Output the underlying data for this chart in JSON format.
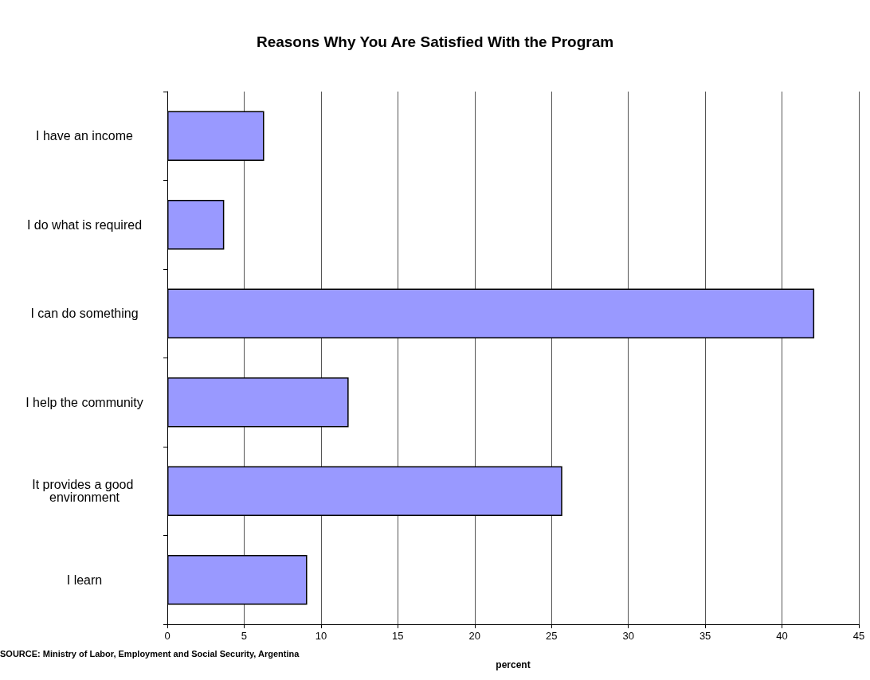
{
  "chart_data": {
    "type": "bar",
    "orientation": "horizontal",
    "title": "Reasons Why You Are Satisfied With the Program",
    "xlabel": "percent",
    "categories": [
      "I have an income",
      "I do what is required",
      "I can do something",
      "I help the community",
      "It provides a good environment",
      "I learn"
    ],
    "values": [
      6.3,
      3.7,
      42.1,
      11.8,
      25.7,
      9.1
    ],
    "color": "#9999ff",
    "xlim": [
      0,
      45
    ],
    "xticks": [
      0,
      5,
      10,
      15,
      20,
      25,
      30,
      35,
      40,
      45
    ],
    "grid": "x",
    "annotations": [
      "SOURCE: Ministry of Labor, Employment and Social Security, Argentina"
    ]
  }
}
